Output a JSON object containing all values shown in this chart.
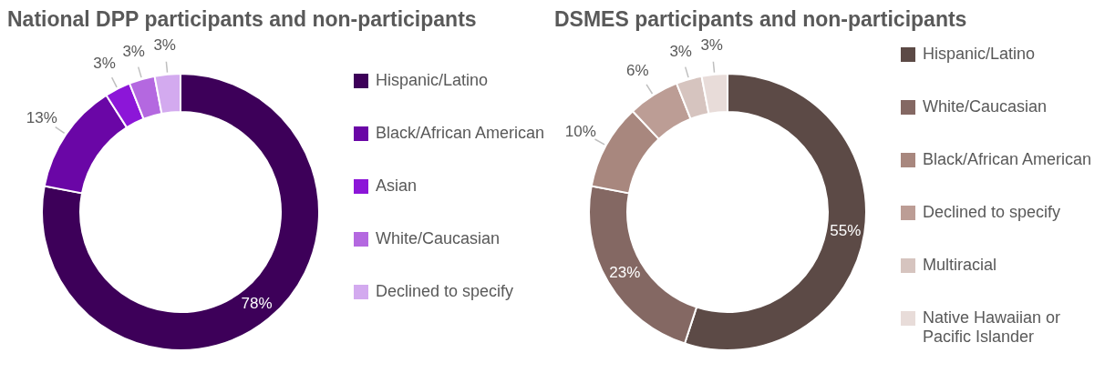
{
  "chart_data": [
    {
      "type": "donut",
      "title": "National DPP participants and non-participants",
      "categories": [
        "Hispanic/Latino",
        "Black/African American",
        "Asian",
        "White/Caucasian",
        "Declined to specify"
      ],
      "values": [
        78,
        13,
        3,
        3,
        3
      ],
      "value_labels": [
        "78%",
        "13%",
        "3%",
        "3%",
        "3%"
      ],
      "colors": [
        "#3d0059",
        "#6a06a6",
        "#8c16d8",
        "#b468e0",
        "#d3aaef"
      ],
      "legend": "right"
    },
    {
      "type": "donut",
      "title": "DSMES participants and non-participants",
      "categories": [
        "Hispanic/Latino",
        "White/Caucasian",
        "Black/African American",
        "Declined to specify",
        "Multiracial",
        "Native Hawaiian or Pacific Islander"
      ],
      "values": [
        55,
        23,
        10,
        6,
        3,
        3
      ],
      "value_labels": [
        "55%",
        "23%",
        "10%",
        "6%",
        "3%",
        "3%"
      ],
      "colors": [
        "#5c4a46",
        "#846863",
        "#a8877e",
        "#bc9d95",
        "#d6c4bf",
        "#e8dcd9"
      ],
      "legend": "right"
    }
  ]
}
